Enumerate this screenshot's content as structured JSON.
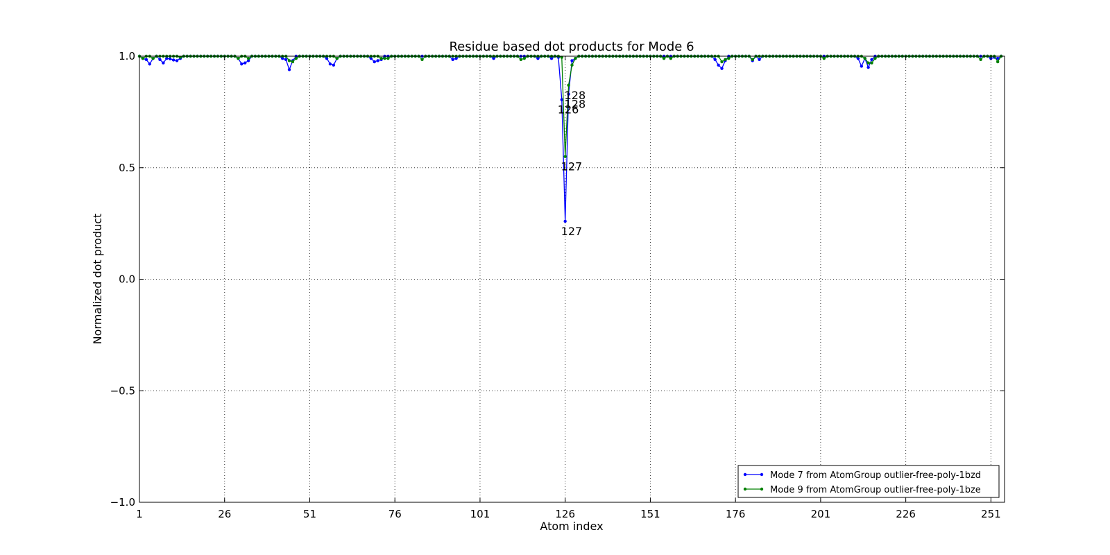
{
  "chart_data": {
    "type": "line",
    "title": "Residue based dot products for Mode 6",
    "xlabel": "Atom index",
    "ylabel": "Normalized dot product",
    "xlim": [
      1,
      255
    ],
    "ylim": [
      -1.0,
      1.0
    ],
    "x_ticks": [
      1,
      26,
      51,
      76,
      101,
      126,
      151,
      176,
      201,
      226,
      251
    ],
    "x_tick_labels": [
      "1",
      "26",
      "51",
      "76",
      "101",
      "126",
      "151",
      "176",
      "201",
      "226",
      "251"
    ],
    "y_ticks": [
      -1.0,
      -0.5,
      0.0,
      0.5,
      1.0
    ],
    "y_tick_labels": [
      "−1.0",
      "−0.5",
      "0.0",
      "0.5",
      "1.0"
    ],
    "grid": true,
    "legend_position": "lower-right",
    "series": [
      {
        "name": "Mode 7 from AtomGroup outlier-free-poly-1bzd",
        "color": "#0000ff",
        "dips": [
          [
            2,
            0.99
          ],
          [
            3,
            0.985
          ],
          [
            4,
            0.965
          ],
          [
            5,
            0.99
          ],
          [
            7,
            0.985
          ],
          [
            8,
            0.97
          ],
          [
            9,
            0.99
          ],
          [
            10,
            0.988
          ],
          [
            11,
            0.983
          ],
          [
            12,
            0.98
          ],
          [
            13,
            0.99
          ],
          [
            30,
            0.99
          ],
          [
            31,
            0.965
          ],
          [
            32,
            0.97
          ],
          [
            33,
            0.98
          ],
          [
            43,
            0.99
          ],
          [
            44,
            0.985
          ],
          [
            45,
            0.94
          ],
          [
            46,
            0.98
          ],
          [
            56,
            0.99
          ],
          [
            57,
            0.965
          ],
          [
            58,
            0.96
          ],
          [
            59,
            0.99
          ],
          [
            69,
            0.99
          ],
          [
            70,
            0.975
          ],
          [
            71,
            0.98
          ],
          [
            72,
            0.985
          ],
          [
            93,
            0.985
          ],
          [
            94,
            0.99
          ],
          [
            105,
            0.99
          ],
          [
            118,
            0.99
          ],
          [
            122,
            0.99
          ],
          [
            124,
            0.995
          ],
          [
            125,
            0.805
          ],
          [
            126,
            0.26
          ],
          [
            127,
            0.83
          ],
          [
            128,
            0.98
          ],
          [
            129,
            0.99
          ],
          [
            170,
            0.985
          ],
          [
            171,
            0.96
          ],
          [
            172,
            0.945
          ],
          [
            173,
            0.98
          ],
          [
            181,
            0.98
          ],
          [
            183,
            0.985
          ],
          [
            212,
            0.99
          ],
          [
            213,
            0.955
          ],
          [
            214,
            0.99
          ],
          [
            215,
            0.95
          ],
          [
            216,
            0.985
          ],
          [
            251,
            0.99
          ],
          [
            252,
            0.995
          ],
          [
            253,
            0.99
          ]
        ]
      },
      {
        "name": "Mode 9 from AtomGroup outlier-free-poly-1bze",
        "color": "#008000",
        "dips": [
          [
            2,
            0.99
          ],
          [
            5,
            0.99
          ],
          [
            13,
            0.995
          ],
          [
            30,
            0.99
          ],
          [
            33,
            0.99
          ],
          [
            45,
            0.98
          ],
          [
            46,
            0.975
          ],
          [
            47,
            0.99
          ],
          [
            59,
            0.99
          ],
          [
            72,
            0.99
          ],
          [
            73,
            0.99
          ],
          [
            74,
            0.99
          ],
          [
            84,
            0.985
          ],
          [
            113,
            0.985
          ],
          [
            114,
            0.99
          ],
          [
            125,
            0.995
          ],
          [
            126,
            0.55
          ],
          [
            127,
            0.87
          ],
          [
            128,
            0.96
          ],
          [
            129,
            0.99
          ],
          [
            155,
            0.99
          ],
          [
            157,
            0.99
          ],
          [
            172,
            0.975
          ],
          [
            173,
            0.985
          ],
          [
            174,
            0.99
          ],
          [
            181,
            0.985
          ],
          [
            202,
            0.99
          ],
          [
            214,
            0.99
          ],
          [
            215,
            0.97
          ],
          [
            216,
            0.97
          ],
          [
            217,
            0.99
          ],
          [
            248,
            0.985
          ],
          [
            253,
            0.975
          ]
        ]
      }
    ],
    "annotations": [
      {
        "text": "126",
        "x": 125,
        "y": 0.805,
        "series": 0
      },
      {
        "text": "127",
        "x": 126,
        "y": 0.26,
        "series": 0
      },
      {
        "text": "128",
        "x": 127,
        "y": 0.83,
        "series": 0
      },
      {
        "text": "127",
        "x": 126,
        "y": 0.55,
        "series": 1
      },
      {
        "text": "128",
        "x": 127,
        "y": 0.87,
        "series": 1
      }
    ]
  }
}
